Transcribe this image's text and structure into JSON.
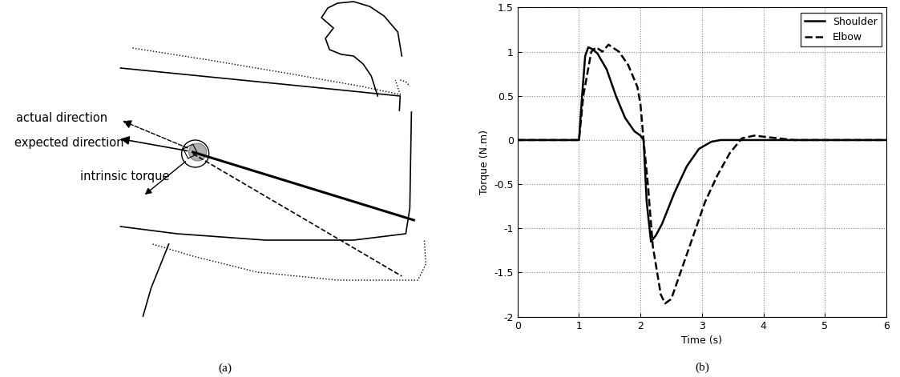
{
  "diagram": {
    "labels": [
      "actual direction",
      "expected direction",
      "intrinsic torque"
    ],
    "caption": "(a)"
  },
  "chart_data": {
    "type": "line",
    "caption": "(b)",
    "xlabel": "Time (s)",
    "ylabel": "Torque (N.m)",
    "series": [
      {
        "name": "Shoulder",
        "color": "#000000",
        "line_style": "solid",
        "x": [
          0,
          1.0,
          1.05,
          1.1,
          1.15,
          1.22,
          1.3,
          1.45,
          1.6,
          1.75,
          1.9,
          2.0,
          2.05,
          2.1,
          2.17,
          2.25,
          2.35,
          2.55,
          2.75,
          2.95,
          3.15,
          3.3,
          6
        ],
        "values": [
          0,
          0,
          0.5,
          0.95,
          1.05,
          1.03,
          0.98,
          0.8,
          0.5,
          0.25,
          0.1,
          0.05,
          0.0,
          -0.7,
          -1.15,
          -1.08,
          -0.95,
          -0.6,
          -0.3,
          -0.1,
          -0.02,
          0,
          0
        ]
      },
      {
        "name": "Elbow",
        "color": "#000000",
        "line_style": "dashed",
        "x": [
          0,
          1.0,
          1.07,
          1.2,
          1.28,
          1.38,
          1.48,
          1.65,
          1.8,
          1.95,
          2.0,
          2.05,
          2.12,
          2.2,
          2.33,
          2.4,
          2.5,
          2.65,
          2.85,
          3.05,
          3.25,
          3.45,
          3.65,
          3.85,
          4.1,
          4.5,
          6
        ],
        "values": [
          0,
          0,
          0.5,
          1.0,
          1.05,
          1.0,
          1.08,
          1.0,
          0.85,
          0.6,
          0.4,
          0.0,
          -0.5,
          -1.2,
          -1.75,
          -1.85,
          -1.8,
          -1.5,
          -1.1,
          -0.7,
          -0.4,
          -0.15,
          0.02,
          0.05,
          0.03,
          0,
          0
        ]
      }
    ],
    "xlim": [
      0,
      6
    ],
    "xticks": [
      0,
      1,
      2,
      3,
      4,
      5,
      6
    ],
    "ylim": [
      -2,
      1.5
    ],
    "yticks": [
      -2,
      -1.5,
      -1,
      -0.5,
      0,
      0.5,
      1,
      1.5
    ],
    "grid": true,
    "legend": "upper right"
  }
}
